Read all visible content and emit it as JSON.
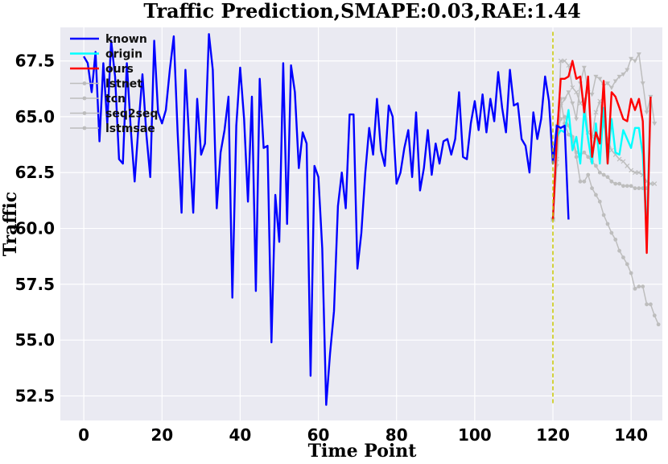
{
  "chart_data": {
    "type": "line",
    "title": "Traffic Prediction,SMAPE:0.03,RAE:1.44",
    "xlabel": "Time Point",
    "ylabel": "Traffic",
    "xlim": [
      -6,
      148
    ],
    "ylim": [
      51.4,
      69.0
    ],
    "xticks": [
      0,
      20,
      40,
      60,
      80,
      100,
      120,
      140
    ],
    "yticks": [
      52.5,
      55.0,
      57.5,
      60.0,
      62.5,
      65.0,
      67.5
    ],
    "grid": true,
    "legend_position": "top-left",
    "vline": {
      "x": 120,
      "y_range": [
        52.1,
        68.8
      ],
      "color": "#c8c800"
    },
    "series": [
      {
        "name": "known",
        "color": "#0000ff",
        "x_start": 0,
        "values": [
          67.7,
          67.4,
          66.1,
          67.9,
          63.9,
          67.4,
          64.7,
          68.4,
          66.8,
          63.1,
          62.9,
          67.4,
          64.5,
          62.1,
          64.6,
          66.9,
          64.2,
          62.3,
          68.4,
          65.2,
          64.7,
          65.3,
          67.1,
          68.6,
          64.3,
          60.7,
          67.1,
          63.8,
          60.7,
          65.8,
          63.3,
          63.8,
          68.7,
          67.1,
          60.9,
          63.4,
          64.4,
          65.9,
          56.9,
          64.6,
          67.2,
          64.9,
          61.2,
          65.9,
          57.2,
          66.7,
          63.6,
          63.7,
          54.9,
          61.5,
          59.4,
          67.4,
          60.2,
          67.3,
          66.1,
          62.7,
          64.3,
          63.8,
          53.4,
          62.8,
          62.3,
          59.1,
          52.1,
          54.4,
          56.3,
          61.0,
          62.5,
          60.9,
          65.1,
          65.1,
          58.2,
          59.8,
          62.5,
          64.5,
          63.3,
          65.8,
          63.5,
          62.8,
          65.5,
          65.0,
          62.0,
          62.5,
          63.6,
          64.4,
          62.3,
          65.2,
          61.7,
          62.7,
          64.4,
          62.4,
          63.8,
          62.9,
          63.9,
          64.0,
          63.3,
          64.0,
          66.1,
          63.2,
          63.1,
          64.7,
          65.7,
          64.4,
          66.0,
          64.3,
          65.8,
          64.8,
          67.0,
          65.4,
          64.3,
          67.1,
          65.5,
          65.6,
          64.0,
          63.7,
          62.5,
          65.2,
          64.0,
          64.9,
          66.8,
          65.7,
          62.9,
          64.6,
          64.5,
          64.6,
          60.4
        ]
      },
      {
        "name": "origin",
        "color": "#00ffff",
        "x_start": 120,
        "values": [
          60.4,
          64.1,
          64.4,
          64.3,
          65.3,
          63.5,
          64.1,
          62.9,
          65.3,
          64.0,
          62.9,
          64.7,
          62.9,
          65.4,
          62.9,
          64.9,
          63.4,
          63.3,
          64.4,
          64.0,
          63.6,
          64.5,
          64.5,
          63.3,
          59.7,
          65.9
        ]
      },
      {
        "name": "ours",
        "color": "#ff0000",
        "x_start": 120,
        "values": [
          60.4,
          64.1,
          66.7,
          66.7,
          66.8,
          67.5,
          66.7,
          66.8,
          65.2,
          66.8,
          63.2,
          64.3,
          63.8,
          66.6,
          62.9,
          66.1,
          65.9,
          65.4,
          64.9,
          64.8,
          65.8,
          65.3,
          65.8,
          64.8,
          58.9,
          65.9
        ]
      },
      {
        "name": "lstnet",
        "color": "#bdbdbd",
        "marker": "circle",
        "x_start": 120,
        "values": [
          60.4,
          64.6,
          65.8,
          64.7,
          64.2,
          64.0,
          63.2,
          62.1,
          62.1,
          62.4,
          61.8,
          61.5,
          61.2,
          60.6,
          60.2,
          59.8,
          59.5,
          59.0,
          58.7,
          58.4,
          58.0,
          57.3,
          57.4,
          57.4,
          56.6,
          56.6,
          56.1,
          55.7
        ]
      },
      {
        "name": "tcn",
        "color": "#bdbdbd",
        "marker": "triangle",
        "x_start": 120,
        "values": [
          60.4,
          62.8,
          65.5,
          65.8,
          66.1,
          65.6,
          64.9,
          66.5,
          67.2,
          66.1,
          66.0,
          66.8,
          66.7,
          66.4,
          66.5,
          66.3,
          66.6,
          66.8,
          66.9,
          67.1,
          67.6,
          67.5,
          67.8,
          66.5,
          65.2,
          65.9,
          64.7
        ]
      },
      {
        "name": "seq2seq",
        "color": "#bdbdbd",
        "marker": "x",
        "x_start": 120,
        "values": [
          60.4,
          63.1,
          67.5,
          67.5,
          67.3,
          66.3,
          66.1,
          65.6,
          65.8,
          64.3,
          64.1,
          65.2,
          65.7,
          64.6,
          64.0,
          63.5,
          63.3,
          63.1,
          63.0,
          62.8,
          62.6,
          62.5,
          62.5,
          62.4,
          62.1,
          62.0,
          62.0
        ]
      },
      {
        "name": "lstmsae",
        "color": "#bdbdbd",
        "marker": "circle",
        "x_start": 120,
        "values": [
          60.4,
          64.2,
          64.9,
          65.0,
          64.6,
          64.1,
          63.4,
          63.3,
          63.4,
          63.2,
          63.0,
          62.8,
          62.5,
          62.4,
          62.3,
          62.1,
          62.0,
          62.0,
          61.9,
          61.9,
          61.9,
          61.8,
          61.8,
          61.8,
          61.8
        ]
      }
    ]
  }
}
